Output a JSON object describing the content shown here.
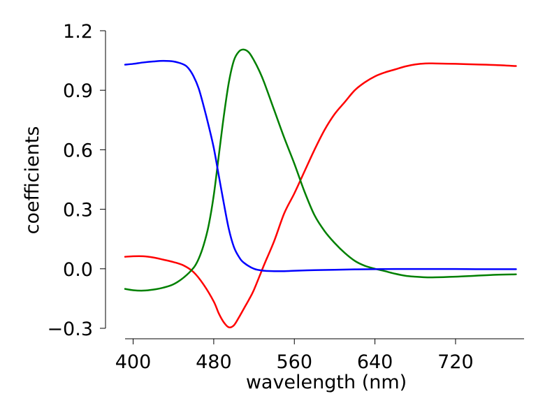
{
  "chart_data": {
    "type": "line",
    "title": "",
    "xlabel": "wavelength (nm)",
    "ylabel": "coefficients",
    "xlim": [
      392,
      788
    ],
    "ylim": [
      -0.3,
      1.2
    ],
    "xticks": [
      400,
      480,
      560,
      640,
      720
    ],
    "xtick_labels": [
      "400",
      "480",
      "560",
      "640",
      "720"
    ],
    "yticks": [
      -0.3,
      0.0,
      0.3,
      0.6,
      0.9,
      1.2
    ],
    "ytick_labels": [
      "−0.3",
      "0.0",
      "0.3",
      "0.6",
      "0.9",
      "1.2"
    ],
    "grid": false,
    "legend": "none",
    "series": [
      {
        "color": "#ff0000",
        "x": [
          390,
          400,
          410,
          420,
          430,
          440,
          450,
          460,
          470,
          480,
          485,
          490,
          495,
          500,
          505,
          510,
          515,
          520,
          530,
          540,
          550,
          560,
          570,
          580,
          590,
          600,
          610,
          620,
          630,
          640,
          650,
          660,
          670,
          680,
          690,
          700,
          720,
          740,
          760,
          780
        ],
        "y": [
          0.06,
          0.063,
          0.063,
          0.057,
          0.046,
          0.034,
          0.017,
          -0.017,
          -0.08,
          -0.165,
          -0.225,
          -0.27,
          -0.295,
          -0.285,
          -0.245,
          -0.2,
          -0.155,
          -0.105,
          0.02,
          0.14,
          0.28,
          0.38,
          0.49,
          0.6,
          0.7,
          0.78,
          0.84,
          0.9,
          0.94,
          0.97,
          0.99,
          1.005,
          1.02,
          1.03,
          1.035,
          1.035,
          1.033,
          1.03,
          1.027,
          1.022
        ]
      },
      {
        "color": "#008000",
        "x": [
          390,
          400,
          410,
          420,
          430,
          440,
          450,
          460,
          465,
          470,
          475,
          480,
          485,
          490,
          495,
          500,
          505,
          510,
          515,
          520,
          525,
          530,
          540,
          550,
          560,
          570,
          580,
          590,
          600,
          610,
          620,
          630,
          640,
          650,
          660,
          670,
          680,
          690,
          700,
          720,
          740,
          760,
          780
        ],
        "y": [
          -0.1,
          -0.108,
          -0.11,
          -0.105,
          -0.095,
          -0.078,
          -0.045,
          0.005,
          0.05,
          0.12,
          0.22,
          0.37,
          0.57,
          0.77,
          0.94,
          1.05,
          1.095,
          1.105,
          1.09,
          1.05,
          1.0,
          0.94,
          0.8,
          0.66,
          0.53,
          0.39,
          0.27,
          0.19,
          0.13,
          0.08,
          0.04,
          0.015,
          0.0,
          -0.012,
          -0.025,
          -0.035,
          -0.04,
          -0.043,
          -0.043,
          -0.04,
          -0.035,
          -0.03,
          -0.028
        ]
      },
      {
        "color": "#0000ff",
        "x": [
          390,
          400,
          410,
          420,
          430,
          440,
          450,
          455,
          460,
          465,
          470,
          475,
          480,
          485,
          490,
          495,
          500,
          505,
          510,
          520,
          530,
          540,
          550,
          560,
          580,
          600,
          620,
          640,
          660,
          680,
          700,
          720,
          740,
          760,
          780
        ],
        "y": [
          1.028,
          1.033,
          1.04,
          1.045,
          1.048,
          1.045,
          1.03,
          1.01,
          0.97,
          0.91,
          0.82,
          0.72,
          0.61,
          0.47,
          0.33,
          0.2,
          0.11,
          0.06,
          0.03,
          0.0,
          -0.01,
          -0.012,
          -0.012,
          -0.01,
          -0.007,
          -0.005,
          -0.003,
          -0.002,
          -0.001,
          -0.001,
          -0.001,
          -0.001,
          -0.002,
          -0.002,
          -0.002
        ]
      }
    ]
  }
}
